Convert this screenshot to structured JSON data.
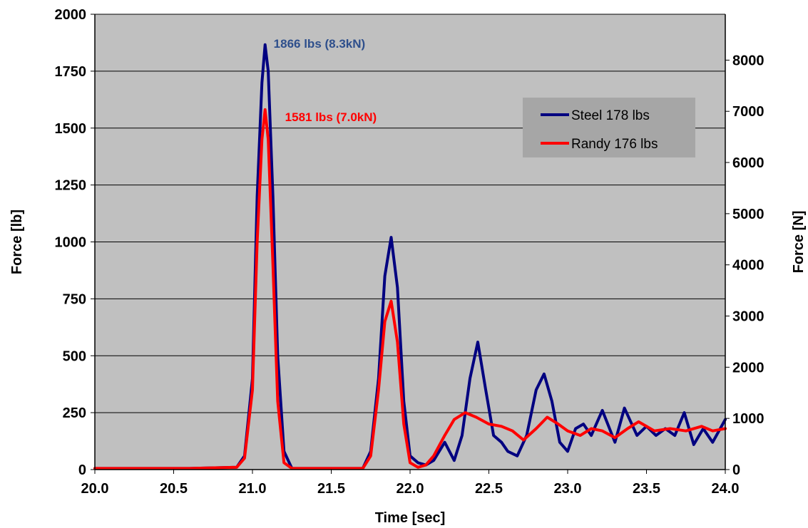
{
  "chart_data": {
    "type": "line",
    "xlabel": "Time [sec]",
    "ylabel": "Force [lb]",
    "y2label": "Force [N]",
    "xlim": [
      20.0,
      24.0
    ],
    "ylim": [
      0,
      2000
    ],
    "y2lim": [
      0,
      8896.44
    ],
    "x_ticks": [
      "20.0",
      "20.5",
      "21.0",
      "21.5",
      "22.0",
      "22.5",
      "23.0",
      "23.5",
      "24.0"
    ],
    "y_ticks": [
      "0",
      "250",
      "500",
      "750",
      "1000",
      "1250",
      "1500",
      "1750",
      "2000"
    ],
    "y2_ticks": [
      "0",
      "1000",
      "2000",
      "3000",
      "4000",
      "5000",
      "6000",
      "7000",
      "8000"
    ],
    "grid": true,
    "plot_background": "#c0c0c0",
    "legend_position": "top-right",
    "annotations": [
      {
        "text": "1866 lbs (8.3kN)",
        "x": 21.08,
        "y": 1866,
        "color": "#2e4f8c"
      },
      {
        "text": "1581 lbs (7.0kN)",
        "x": 21.08,
        "y": 1581,
        "color": "#ff0000"
      }
    ],
    "series": [
      {
        "name": "Steel 178 lbs",
        "color": "#000080",
        "x": [
          20.0,
          20.3,
          20.6,
          20.9,
          20.95,
          21.0,
          21.03,
          21.06,
          21.08,
          21.1,
          21.13,
          21.16,
          21.2,
          21.25,
          21.5,
          21.7,
          21.75,
          21.8,
          21.84,
          21.88,
          21.92,
          21.96,
          22.0,
          22.05,
          22.1,
          22.15,
          22.22,
          22.28,
          22.33,
          22.38,
          22.43,
          22.48,
          22.53,
          22.58,
          22.62,
          22.68,
          22.74,
          22.8,
          22.85,
          22.9,
          22.95,
          23.0,
          23.05,
          23.1,
          23.15,
          23.22,
          23.3,
          23.36,
          23.44,
          23.5,
          23.56,
          23.62,
          23.68,
          23.74,
          23.8,
          23.86,
          23.92,
          24.0
        ],
        "values": [
          5,
          5,
          5,
          10,
          60,
          400,
          1200,
          1700,
          1866,
          1750,
          1200,
          500,
          80,
          5,
          5,
          5,
          80,
          400,
          850,
          1020,
          800,
          300,
          60,
          30,
          20,
          40,
          120,
          40,
          150,
          400,
          560,
          350,
          150,
          120,
          80,
          60,
          150,
          350,
          420,
          300,
          120,
          80,
          180,
          200,
          150,
          260,
          120,
          270,
          150,
          190,
          150,
          180,
          150,
          250,
          110,
          180,
          120,
          220
        ]
      },
      {
        "name": "Randy 176 lbs",
        "color": "#ff0000",
        "x": [
          20.0,
          20.3,
          20.6,
          20.9,
          20.95,
          21.0,
          21.03,
          21.06,
          21.08,
          21.1,
          21.13,
          21.16,
          21.2,
          21.25,
          21.5,
          21.7,
          21.75,
          21.8,
          21.84,
          21.88,
          21.92,
          21.96,
          22.0,
          22.05,
          22.1,
          22.15,
          22.22,
          22.28,
          22.35,
          22.42,
          22.5,
          22.58,
          22.65,
          22.72,
          22.8,
          22.87,
          22.94,
          23.0,
          23.08,
          23.15,
          23.22,
          23.3,
          23.38,
          23.45,
          23.55,
          23.65,
          23.75,
          23.85,
          23.92,
          24.0
        ],
        "values": [
          5,
          5,
          5,
          10,
          50,
          350,
          1000,
          1450,
          1581,
          1450,
          900,
          300,
          30,
          5,
          5,
          5,
          60,
          350,
          650,
          740,
          560,
          200,
          30,
          10,
          20,
          60,
          150,
          220,
          250,
          230,
          200,
          190,
          170,
          130,
          180,
          230,
          200,
          170,
          150,
          180,
          170,
          140,
          180,
          210,
          170,
          180,
          170,
          190,
          170,
          180
        ]
      }
    ]
  }
}
